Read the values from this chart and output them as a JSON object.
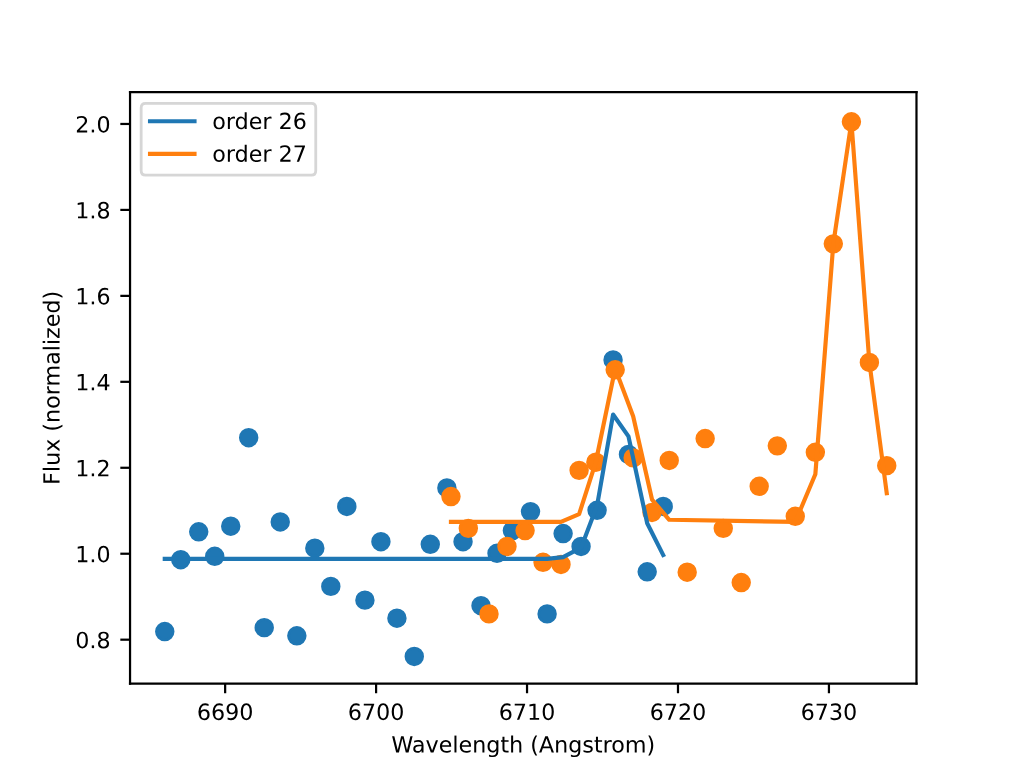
{
  "chart_data": {
    "type": "line",
    "xlabel": "Wavelength (Angstrom)",
    "ylabel": "Flux (normalized)",
    "xlim": [
      6683.7,
      6735.8
    ],
    "ylim": [
      0.698,
      2.074
    ],
    "xticks": [
      6690,
      6700,
      6710,
      6720,
      6730
    ],
    "yticks": [
      0.8,
      {
        "value": 1.0,
        "label": "1.0"
      },
      1.2,
      1.4,
      1.6,
      1.8,
      {
        "value": 2.0,
        "label": "2.0"
      }
    ],
    "grid": false,
    "legend": "top left",
    "series": [
      {
        "type": "scatter",
        "color": "#1f77b4",
        "marker": "circle",
        "x": [
          6686.0,
          6687.06,
          6688.25,
          6689.31,
          6690.37,
          6691.56,
          6692.59,
          6693.65,
          6694.75,
          6695.94,
          6697.0,
          6698.06,
          6699.26,
          6700.32,
          6701.38,
          6702.53,
          6703.59,
          6704.69,
          6705.76,
          6706.95,
          6708.01,
          6709.03,
          6710.23,
          6711.33,
          6712.39,
          6713.58,
          6714.64,
          6715.7,
          6716.72,
          6717.96,
          6719.02
        ],
        "values": [
          0.819,
          0.986,
          1.051,
          0.994,
          1.064,
          1.27,
          0.828,
          1.074,
          0.809,
          1.013,
          0.924,
          1.11,
          0.892,
          1.028,
          0.85,
          0.761,
          1.022,
          1.153,
          1.028,
          0.879,
          1.001,
          1.054,
          1.098,
          0.86,
          1.047,
          1.017,
          1.101,
          1.451,
          1.231,
          0.958,
          1.11
        ]
      },
      {
        "type": "scatter",
        "color": "#ff7f0e",
        "marker": "circle",
        "x": [
          6704.96,
          6706.11,
          6707.48,
          6708.67,
          6709.87,
          6711.06,
          6712.25,
          6713.45,
          6714.56,
          6715.84,
          6717.03,
          6718.28,
          6719.42,
          6720.61,
          6721.8,
          6723.0,
          6724.19,
          6725.38,
          6726.58,
          6727.77,
          6729.1,
          6730.29,
          6731.49,
          6732.68,
          6733.83
        ],
        "values": [
          1.133,
          1.059,
          0.86,
          1.017,
          1.054,
          0.98,
          0.975,
          1.194,
          1.213,
          1.428,
          1.223,
          1.096,
          1.217,
          0.957,
          1.268,
          1.059,
          0.933,
          1.157,
          1.251,
          1.087,
          1.236,
          1.721,
          2.005,
          1.445,
          1.205
        ]
      },
      {
        "name": "order 26",
        "color": "#1f77b4",
        "x": [
          6686.0,
          6711.33,
          6712.39,
          6713.58,
          6714.64,
          6715.7,
          6716.72,
          6717.96,
          6719.02
        ],
        "values": [
          0.988,
          0.988,
          0.992,
          1.014,
          1.112,
          1.324,
          1.273,
          1.071,
          0.997
        ]
      },
      {
        "name": "order 27",
        "color": "#ff7f0e",
        "x": [
          6704.96,
          6712.25,
          6713.45,
          6714.56,
          6715.84,
          6717.03,
          6718.28,
          6719.42,
          6727.77,
          6729.1,
          6730.29,
          6731.49,
          6732.68,
          6733.83
        ],
        "values": [
          1.074,
          1.074,
          1.092,
          1.214,
          1.431,
          1.32,
          1.126,
          1.079,
          1.074,
          1.185,
          1.721,
          2.005,
          1.445,
          1.141
        ]
      }
    ]
  }
}
